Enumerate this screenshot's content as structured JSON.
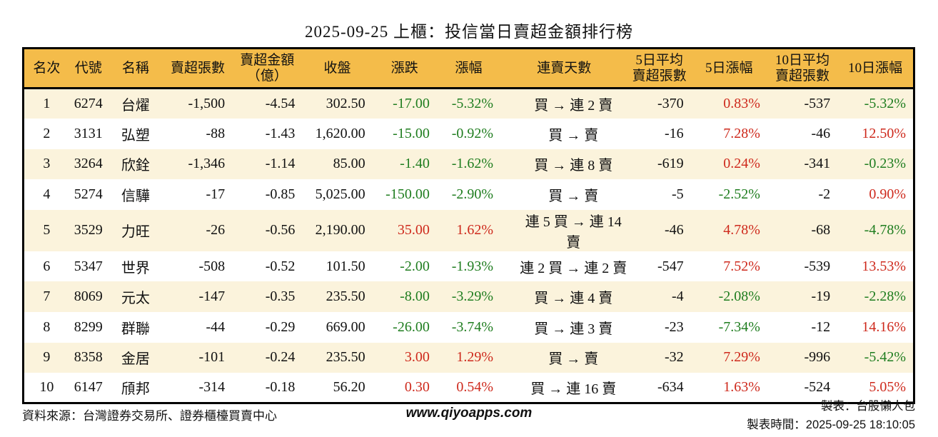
{
  "title": "2025-09-25 上櫃：投信當日賣超金額排行榜",
  "colors": {
    "up": "#CE291C",
    "down": "#1F7D1F",
    "header_bg": "#F4BC4A",
    "row_alt_bg": "#FBF3DC",
    "border": "#000000"
  },
  "table": {
    "headers": {
      "rank": "名次",
      "code": "代號",
      "name": "名稱",
      "sell_shares": "賣超張數",
      "sell_amount": "賣超金額\n（億）",
      "close": "收盤",
      "change": "漲跌",
      "change_pct": "漲幅",
      "streak": "連賣天數",
      "avg5": "5日平均\n賣超張數",
      "pct5": "5日漲幅",
      "avg10": "10日平均\n賣超張數",
      "pct10": "10日漲幅"
    },
    "rows": [
      {
        "rank": "1",
        "code": "6274",
        "name": "台燿",
        "sell_shares": "-1,500",
        "sell_amount": "-4.54",
        "close": "302.50",
        "change": "-17.00",
        "change_pct": "-5.32%",
        "streak": "買 → 連 2 賣",
        "avg5": "-370",
        "pct5": "0.83%",
        "avg10": "-537",
        "pct10": "-5.32%"
      },
      {
        "rank": "2",
        "code": "3131",
        "name": "弘塑",
        "sell_shares": "-88",
        "sell_amount": "-1.43",
        "close": "1,620.00",
        "change": "-15.00",
        "change_pct": "-0.92%",
        "streak": "買 → 賣",
        "avg5": "-16",
        "pct5": "7.28%",
        "avg10": "-46",
        "pct10": "12.50%"
      },
      {
        "rank": "3",
        "code": "3264",
        "name": "欣銓",
        "sell_shares": "-1,346",
        "sell_amount": "-1.14",
        "close": "85.00",
        "change": "-1.40",
        "change_pct": "-1.62%",
        "streak": "買 → 連 8 賣",
        "avg5": "-619",
        "pct5": "0.24%",
        "avg10": "-341",
        "pct10": "-0.23%"
      },
      {
        "rank": "4",
        "code": "5274",
        "name": "信驊",
        "sell_shares": "-17",
        "sell_amount": "-0.85",
        "close": "5,025.00",
        "change": "-150.00",
        "change_pct": "-2.90%",
        "streak": "買 → 賣",
        "avg5": "-5",
        "pct5": "-2.52%",
        "avg10": "-2",
        "pct10": "0.90%"
      },
      {
        "rank": "5",
        "code": "3529",
        "name": "力旺",
        "sell_shares": "-26",
        "sell_amount": "-0.56",
        "close": "2,190.00",
        "change": "35.00",
        "change_pct": "1.62%",
        "streak": "連 5 買 → 連 14 賣",
        "avg5": "-46",
        "pct5": "4.78%",
        "avg10": "-68",
        "pct10": "-4.78%"
      },
      {
        "rank": "6",
        "code": "5347",
        "name": "世界",
        "sell_shares": "-508",
        "sell_amount": "-0.52",
        "close": "101.50",
        "change": "-2.00",
        "change_pct": "-1.93%",
        "streak": "連 2 買 → 連 2 賣",
        "avg5": "-547",
        "pct5": "7.52%",
        "avg10": "-539",
        "pct10": "13.53%"
      },
      {
        "rank": "7",
        "code": "8069",
        "name": "元太",
        "sell_shares": "-147",
        "sell_amount": "-0.35",
        "close": "235.50",
        "change": "-8.00",
        "change_pct": "-3.29%",
        "streak": "買 → 連 4 賣",
        "avg5": "-4",
        "pct5": "-2.08%",
        "avg10": "-19",
        "pct10": "-2.28%"
      },
      {
        "rank": "8",
        "code": "8299",
        "name": "群聯",
        "sell_shares": "-44",
        "sell_amount": "-0.29",
        "close": "669.00",
        "change": "-26.00",
        "change_pct": "-3.74%",
        "streak": "買 → 連 3 賣",
        "avg5": "-23",
        "pct5": "-7.34%",
        "avg10": "-12",
        "pct10": "14.16%"
      },
      {
        "rank": "9",
        "code": "8358",
        "name": "金居",
        "sell_shares": "-101",
        "sell_amount": "-0.24",
        "close": "235.50",
        "change": "3.00",
        "change_pct": "1.29%",
        "streak": "買 → 賣",
        "avg5": "-32",
        "pct5": "7.29%",
        "avg10": "-996",
        "pct10": "-5.42%"
      },
      {
        "rank": "10",
        "code": "6147",
        "name": "頎邦",
        "sell_shares": "-314",
        "sell_amount": "-0.18",
        "close": "56.20",
        "change": "0.30",
        "change_pct": "0.54%",
        "streak": "買 → 連 16 賣",
        "avg5": "-634",
        "pct5": "1.63%",
        "avg10": "-524",
        "pct10": "5.05%"
      }
    ]
  },
  "footer": {
    "source": "資料來源：台灣證券交易所、證券櫃檯買賣中心",
    "website": "www.qiyoapps.com",
    "maker": "製表：台股懶人包",
    "made_time_label": "製表時間：",
    "made_time": "2025-09-25 18:10:05"
  }
}
